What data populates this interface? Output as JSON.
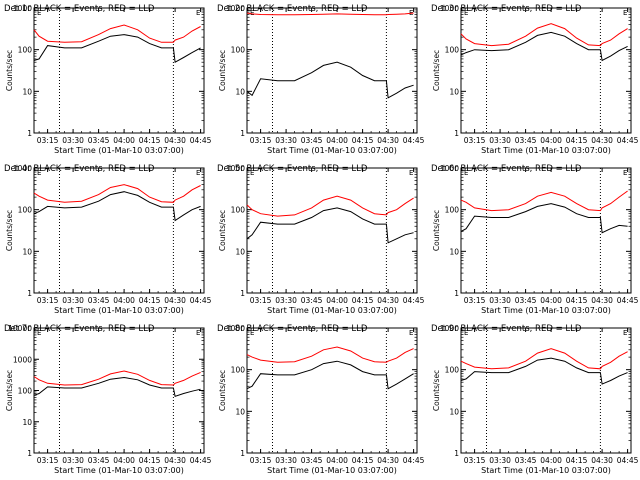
{
  "figure": {
    "background": "#ffffff",
    "axis_color": "#000000",
    "events_color": "#000000",
    "lld_color": "#ff0000"
  },
  "chart_data": [
    {
      "type": "line",
      "title": "Det 1r BLACK = Events, RED = LLD",
      "corner_mark": "E",
      "xlabel": "Start Time (01-Mar-10 03:07:00)",
      "ylabel": "Counts/sec",
      "xlim": [
        "03:07",
        "04:47"
      ],
      "ylim": [
        1,
        1000
      ],
      "yscale": "log",
      "xticks": [
        "03:15",
        "03:30",
        "03:45",
        "04:00",
        "04:15",
        "04:30",
        "04:45"
      ],
      "yticks": [
        {
          "v": 1,
          "label": "1"
        },
        {
          "v": 10,
          "label": "10"
        },
        {
          "v": 100,
          "label": "100"
        },
        {
          "v": 1000,
          "label": "1000"
        }
      ],
      "vlines": [
        "03:22",
        "04:29"
      ],
      "grid": false,
      "x": [
        "03:07",
        "03:10",
        "03:15",
        "03:25",
        "03:35",
        "03:45",
        "03:52",
        "04:00",
        "04:08",
        "04:15",
        "04:22",
        "04:29",
        "04:30",
        "04:35",
        "04:40",
        "04:45"
      ],
      "series": [
        {
          "name": "Events",
          "color": "#000000",
          "values": [
            55,
            60,
            125,
            110,
            110,
            160,
            210,
            230,
            200,
            140,
            110,
            110,
            50,
            65,
            85,
            110
          ]
        },
        {
          "name": "LLD",
          "color": "#ff0000",
          "values": [
            300,
            210,
            160,
            150,
            155,
            230,
            320,
            390,
            300,
            190,
            150,
            150,
            170,
            200,
            280,
            360
          ]
        }
      ]
    },
    {
      "type": "line",
      "title": "Det 2r BLACK = Events, RED = LLD",
      "corner_mark": "E",
      "xlabel": "Start Time (01-Mar-10 03:07:00)",
      "ylabel": "Counts/sec",
      "xlim": [
        "03:07",
        "04:47"
      ],
      "ylim": [
        1,
        1000
      ],
      "yscale": "log",
      "xticks": [
        "03:15",
        "03:30",
        "03:45",
        "04:00",
        "04:15",
        "04:30",
        "04:45"
      ],
      "yticks": [
        {
          "v": 1,
          "label": "1"
        },
        {
          "v": 10,
          "label": "10"
        },
        {
          "v": 100,
          "label": "100"
        },
        {
          "v": 1000,
          "label": "1000"
        }
      ],
      "vlines": [
        "03:22",
        "04:29"
      ],
      "grid": false,
      "x": [
        "03:07",
        "03:10",
        "03:15",
        "03:25",
        "03:35",
        "03:45",
        "03:52",
        "04:00",
        "04:08",
        "04:15",
        "04:22",
        "04:29",
        "04:30",
        "04:35",
        "04:40",
        "04:45"
      ],
      "series": [
        {
          "name": "Events",
          "color": "#000000",
          "values": [
            10,
            8,
            20,
            18,
            18,
            28,
            42,
            50,
            38,
            24,
            18,
            18,
            7,
            9,
            12,
            14
          ]
        },
        {
          "name": "LLD",
          "color": "#ff0000",
          "values": [
            760,
            720,
            700,
            690,
            690,
            700,
            710,
            720,
            710,
            700,
            690,
            690,
            700,
            710,
            720,
            760
          ]
        }
      ]
    },
    {
      "type": "line",
      "title": "Det 3r BLACK = Events, RED = LLD",
      "corner_mark": "E",
      "xlabel": "Start Time (01-Mar-10 03:07:00)",
      "ylabel": "Counts/sec",
      "xlim": [
        "03:07",
        "04:47"
      ],
      "ylim": [
        1,
        1000
      ],
      "yscale": "log",
      "xticks": [
        "03:15",
        "03:30",
        "03:45",
        "04:00",
        "04:15",
        "04:30",
        "04:45"
      ],
      "yticks": [
        {
          "v": 1,
          "label": "1"
        },
        {
          "v": 10,
          "label": "10"
        },
        {
          "v": 100,
          "label": "100"
        },
        {
          "v": 1000,
          "label": "1000"
        }
      ],
      "vlines": [
        "03:22",
        "04:29"
      ],
      "grid": false,
      "x": [
        "03:07",
        "03:10",
        "03:15",
        "03:25",
        "03:35",
        "03:45",
        "03:52",
        "04:00",
        "04:08",
        "04:15",
        "04:22",
        "04:29",
        "04:30",
        "04:35",
        "04:40",
        "04:45"
      ],
      "series": [
        {
          "name": "Events",
          "color": "#000000",
          "values": [
            75,
            85,
            100,
            95,
            100,
            150,
            220,
            260,
            210,
            140,
            100,
            100,
            55,
            70,
            95,
            120
          ]
        },
        {
          "name": "LLD",
          "color": "#ff0000",
          "values": [
            240,
            180,
            140,
            125,
            135,
            210,
            330,
            420,
            320,
            190,
            130,
            125,
            140,
            170,
            240,
            320
          ]
        }
      ]
    },
    {
      "type": "line",
      "title": "Det 4r BLACK = Events, RED = LLD",
      "corner_mark": "E",
      "xlabel": "Start Time (01-Mar-10 03:07:00)",
      "ylabel": "Counts/sec",
      "xlim": [
        "03:07",
        "04:47"
      ],
      "ylim": [
        1,
        1000
      ],
      "yscale": "log",
      "xticks": [
        "03:15",
        "03:30",
        "03:45",
        "04:00",
        "04:15",
        "04:30",
        "04:45"
      ],
      "yticks": [
        {
          "v": 1,
          "label": "1"
        },
        {
          "v": 10,
          "label": "10"
        },
        {
          "v": 100,
          "label": "100"
        },
        {
          "v": 1000,
          "label": "1000"
        }
      ],
      "vlines": [
        "03:22",
        "04:29"
      ],
      "grid": false,
      "x": [
        "03:07",
        "03:10",
        "03:15",
        "03:25",
        "03:35",
        "03:45",
        "03:52",
        "04:00",
        "04:08",
        "04:15",
        "04:22",
        "04:29",
        "04:30",
        "04:35",
        "04:40",
        "04:45"
      ],
      "series": [
        {
          "name": "Events",
          "color": "#000000",
          "values": [
            80,
            90,
            120,
            110,
            115,
            160,
            230,
            270,
            220,
            150,
            115,
            115,
            55,
            75,
            100,
            120
          ]
        },
        {
          "name": "LLD",
          "color": "#ff0000",
          "values": [
            250,
            210,
            170,
            150,
            160,
            230,
            340,
            400,
            320,
            200,
            155,
            150,
            170,
            210,
            300,
            380
          ]
        }
      ]
    },
    {
      "type": "line",
      "title": "Det 5r BLACK = Events, RED = LLD",
      "corner_mark": "E",
      "xlabel": "Start Time (01-Mar-10 03:07:00)",
      "ylabel": "Counts/sec",
      "xlim": [
        "03:07",
        "04:47"
      ],
      "ylim": [
        1,
        1000
      ],
      "yscale": "log",
      "xticks": [
        "03:15",
        "03:30",
        "03:45",
        "04:00",
        "04:15",
        "04:30",
        "04:45"
      ],
      "yticks": [
        {
          "v": 1,
          "label": "1"
        },
        {
          "v": 10,
          "label": "10"
        },
        {
          "v": 100,
          "label": "100"
        },
        {
          "v": 1000,
          "label": "1000"
        }
      ],
      "vlines": [
        "03:22",
        "04:29"
      ],
      "grid": false,
      "x": [
        "03:07",
        "03:10",
        "03:15",
        "03:25",
        "03:35",
        "03:45",
        "03:52",
        "04:00",
        "04:08",
        "04:15",
        "04:22",
        "04:29",
        "04:30",
        "04:35",
        "04:40",
        "04:45"
      ],
      "series": [
        {
          "name": "Events",
          "color": "#000000",
          "values": [
            20,
            25,
            50,
            45,
            45,
            65,
            95,
            110,
            90,
            60,
            45,
            45,
            16,
            20,
            25,
            28
          ]
        },
        {
          "name": "LLD",
          "color": "#ff0000",
          "values": [
            130,
            100,
            80,
            70,
            75,
            110,
            170,
            210,
            170,
            110,
            80,
            75,
            85,
            100,
            140,
            190
          ]
        }
      ]
    },
    {
      "type": "line",
      "title": "Det 6r BLACK = Events, RED = LLD",
      "corner_mark": "E",
      "xlabel": "Start Time (01-Mar-10 03:07:00)",
      "ylabel": "Counts/sec",
      "xlim": [
        "03:07",
        "04:47"
      ],
      "ylim": [
        1,
        1000
      ],
      "yscale": "log",
      "xticks": [
        "03:15",
        "03:30",
        "03:45",
        "04:00",
        "04:15",
        "04:30",
        "04:45"
      ],
      "yticks": [
        {
          "v": 1,
          "label": "1"
        },
        {
          "v": 10,
          "label": "10"
        },
        {
          "v": 100,
          "label": "100"
        },
        {
          "v": 1000,
          "label": "1000"
        }
      ],
      "vlines": [
        "03:22",
        "04:29"
      ],
      "grid": false,
      "x": [
        "03:07",
        "03:10",
        "03:15",
        "03:25",
        "03:35",
        "03:45",
        "03:52",
        "04:00",
        "04:08",
        "04:15",
        "04:22",
        "04:29",
        "04:30",
        "04:35",
        "04:40",
        "04:45"
      ],
      "series": [
        {
          "name": "Events",
          "color": "#000000",
          "values": [
            30,
            35,
            70,
            65,
            65,
            90,
            120,
            140,
            115,
            80,
            65,
            65,
            28,
            35,
            42,
            40
          ]
        },
        {
          "name": "LLD",
          "color": "#ff0000",
          "values": [
            170,
            150,
            110,
            95,
            100,
            140,
            210,
            260,
            210,
            140,
            100,
            95,
            110,
            140,
            200,
            280
          ]
        }
      ]
    },
    {
      "type": "line",
      "title": "Det 7r BLACK = Events, RED = LLD",
      "corner_mark": "E",
      "xlabel": "Start Time (01-Mar-10 03:07:00)",
      "ylabel": "Counts/sec",
      "xlim": [
        "03:07",
        "04:47"
      ],
      "ylim": [
        1,
        10000
      ],
      "yscale": "log",
      "xticks": [
        "03:15",
        "03:30",
        "03:45",
        "04:00",
        "04:15",
        "04:30",
        "04:45"
      ],
      "yticks": [
        {
          "v": 1,
          "label": "1"
        },
        {
          "v": 10,
          "label": "10"
        },
        {
          "v": 100,
          "label": "100"
        },
        {
          "v": 1000,
          "label": "1000"
        },
        {
          "v": 10000,
          "label": "10000"
        }
      ],
      "vlines": [
        "03:22",
        "04:29"
      ],
      "grid": false,
      "x": [
        "03:07",
        "03:10",
        "03:15",
        "03:25",
        "03:35",
        "03:45",
        "03:52",
        "04:00",
        "04:08",
        "04:15",
        "04:22",
        "04:29",
        "04:30",
        "04:35",
        "04:40",
        "04:45"
      ],
      "series": [
        {
          "name": "Events",
          "color": "#000000",
          "values": [
            70,
            80,
            130,
            120,
            120,
            170,
            230,
            260,
            220,
            150,
            120,
            120,
            65,
            80,
            95,
            110
          ]
        },
        {
          "name": "LLD",
          "color": "#ff0000",
          "values": [
            280,
            220,
            170,
            150,
            155,
            230,
            340,
            420,
            330,
            210,
            155,
            150,
            170,
            210,
            290,
            380
          ]
        }
      ]
    },
    {
      "type": "line",
      "title": "Det 8r BLACK = Events, RED = LLD",
      "corner_mark": "E",
      "xlabel": "Start Time (01-Mar-10 03:07:00)",
      "ylabel": "Counts/sec",
      "xlim": [
        "03:07",
        "04:47"
      ],
      "ylim": [
        1,
        1000
      ],
      "yscale": "log",
      "xticks": [
        "03:15",
        "03:30",
        "03:45",
        "04:00",
        "04:15",
        "04:30",
        "04:45"
      ],
      "yticks": [
        {
          "v": 1,
          "label": "1"
        },
        {
          "v": 10,
          "label": "10"
        },
        {
          "v": 100,
          "label": "100"
        },
        {
          "v": 1000,
          "label": "1000"
        }
      ],
      "vlines": [
        "03:22",
        "04:29"
      ],
      "grid": false,
      "x": [
        "03:07",
        "03:10",
        "03:15",
        "03:25",
        "03:35",
        "03:45",
        "03:52",
        "04:00",
        "04:08",
        "04:15",
        "04:22",
        "04:29",
        "04:30",
        "04:35",
        "04:40",
        "04:45"
      ],
      "series": [
        {
          "name": "Events",
          "color": "#000000",
          "values": [
            35,
            40,
            80,
            75,
            75,
            100,
            140,
            160,
            130,
            90,
            75,
            75,
            35,
            45,
            60,
            80
          ]
        },
        {
          "name": "LLD",
          "color": "#ff0000",
          "values": [
            230,
            200,
            170,
            150,
            155,
            210,
            300,
            350,
            280,
            190,
            155,
            150,
            160,
            190,
            260,
            320
          ]
        }
      ]
    },
    {
      "type": "line",
      "title": "Det 9r BLACK = Events, RED = LLD",
      "corner_mark": "E",
      "xlabel": "Start Time (01-Mar-10 03:07:00)",
      "ylabel": "Counts/sec",
      "xlim": [
        "03:07",
        "04:47"
      ],
      "ylim": [
        1,
        1000
      ],
      "yscale": "log",
      "xticks": [
        "03:15",
        "03:30",
        "03:45",
        "04:00",
        "04:15",
        "04:30",
        "04:45"
      ],
      "yticks": [
        {
          "v": 1,
          "label": "1"
        },
        {
          "v": 10,
          "label": "10"
        },
        {
          "v": 100,
          "label": "100"
        },
        {
          "v": 1000,
          "label": "1000"
        }
      ],
      "vlines": [
        "03:22",
        "04:29"
      ],
      "grid": false,
      "x": [
        "03:07",
        "03:10",
        "03:15",
        "03:25",
        "03:35",
        "03:45",
        "03:52",
        "04:00",
        "04:08",
        "04:15",
        "04:22",
        "04:29",
        "04:30",
        "04:35",
        "04:40",
        "04:45"
      ],
      "series": [
        {
          "name": "Events",
          "color": "#000000",
          "values": [
            55,
            60,
            90,
            85,
            85,
            120,
            170,
            190,
            160,
            110,
            85,
            85,
            45,
            55,
            70,
            85
          ]
        },
        {
          "name": "LLD",
          "color": "#ff0000",
          "values": [
            160,
            140,
            115,
            105,
            110,
            160,
            250,
            320,
            250,
            160,
            110,
            105,
            120,
            150,
            210,
            270
          ]
        }
      ]
    }
  ]
}
